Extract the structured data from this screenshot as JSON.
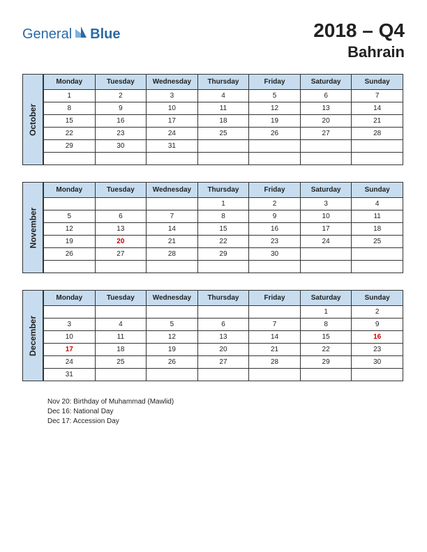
{
  "logo": {
    "text1": "General",
    "text2": "Blue"
  },
  "header": {
    "title": "2018 – Q4",
    "country": "Bahrain"
  },
  "days": [
    "Monday",
    "Tuesday",
    "Wednesday",
    "Thursday",
    "Friday",
    "Saturday",
    "Sunday"
  ],
  "months": [
    {
      "name": "October",
      "weeks": [
        [
          "1",
          "2",
          "3",
          "4",
          "5",
          "6",
          "7"
        ],
        [
          "8",
          "9",
          "10",
          "11",
          "12",
          "13",
          "14"
        ],
        [
          "15",
          "16",
          "17",
          "18",
          "19",
          "20",
          "21"
        ],
        [
          "22",
          "23",
          "24",
          "25",
          "26",
          "27",
          "28"
        ],
        [
          "29",
          "30",
          "31",
          "",
          "",
          "",
          ""
        ],
        [
          "",
          "",
          "",
          "",
          "",
          "",
          ""
        ]
      ],
      "holidays": []
    },
    {
      "name": "November",
      "weeks": [
        [
          "",
          "",
          "",
          "1",
          "2",
          "3",
          "4"
        ],
        [
          "5",
          "6",
          "7",
          "8",
          "9",
          "10",
          "11"
        ],
        [
          "12",
          "13",
          "14",
          "15",
          "16",
          "17",
          "18"
        ],
        [
          "19",
          "20",
          "21",
          "22",
          "23",
          "24",
          "25"
        ],
        [
          "26",
          "27",
          "28",
          "29",
          "30",
          "",
          ""
        ],
        [
          "",
          "",
          "",
          "",
          "",
          "",
          ""
        ]
      ],
      "holidays": [
        "20"
      ]
    },
    {
      "name": "December",
      "weeks": [
        [
          "",
          "",
          "",
          "",
          "",
          "1",
          "2"
        ],
        [
          "3",
          "4",
          "5",
          "6",
          "7",
          "8",
          "9"
        ],
        [
          "10",
          "11",
          "12",
          "13",
          "14",
          "15",
          "16"
        ],
        [
          "17",
          "18",
          "19",
          "20",
          "21",
          "22",
          "23"
        ],
        [
          "24",
          "25",
          "26",
          "27",
          "28",
          "29",
          "30"
        ],
        [
          "31",
          "",
          "",
          "",
          "",
          "",
          ""
        ]
      ],
      "holidays": [
        "16",
        "17"
      ]
    }
  ],
  "holiday_list": [
    "Nov 20: Birthday of Muhammad (Mawlid)",
    "Dec 16: National Day",
    "Dec 17: Accession Day"
  ],
  "colors": {
    "header_bg": "#c7ddef",
    "border": "#333333",
    "text": "#222222",
    "holiday": "#cc0000",
    "logo": "#2b6aa6"
  }
}
